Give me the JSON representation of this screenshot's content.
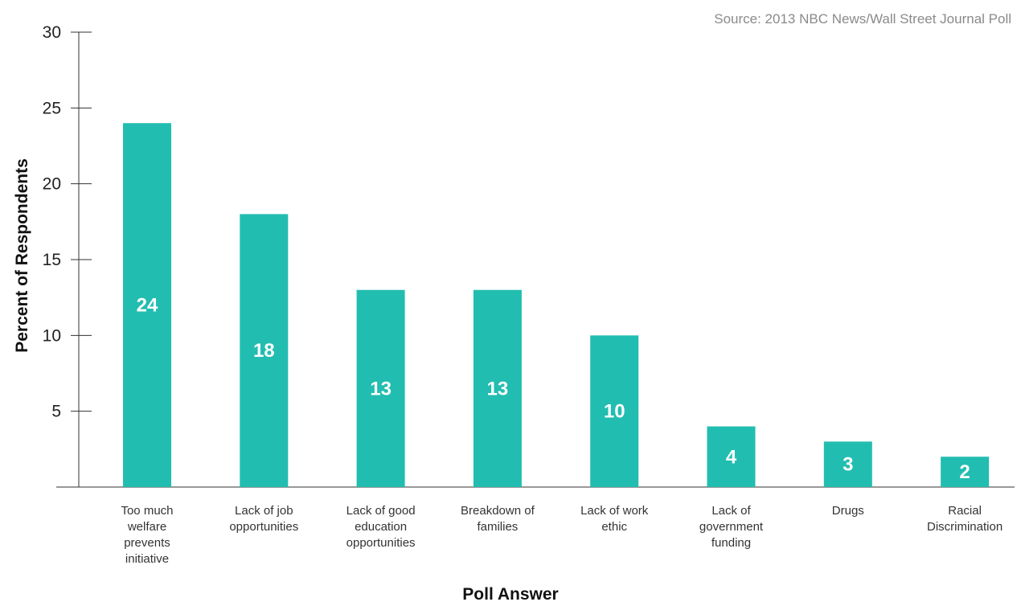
{
  "source_note": "Source: 2013 NBC News/Wall Street Journal Poll",
  "chart_data": {
    "type": "bar",
    "xlabel": "Poll Answer",
    "ylabel": "Percent of Respondents",
    "ylim": [
      0,
      30
    ],
    "yticks": [
      5,
      10,
      15,
      20,
      25,
      30
    ],
    "grid": false,
    "bar_color": "#22bdb1",
    "data_label_color": "#ffffff",
    "categories": [
      "Too much welfare prevents initiative",
      "Lack of job opportunities",
      "Lack of good education opportunities",
      "Breakdown of families",
      "Lack of work ethic",
      "Lack of government funding",
      "Drugs",
      "Racial Discrimination"
    ],
    "category_label_lines": [
      [
        "Too much",
        "welfare",
        "prevents",
        "initiative"
      ],
      [
        "Lack of job",
        "opportunities"
      ],
      [
        "Lack of good",
        "education",
        "opportunities"
      ],
      [
        "Breakdown of",
        "families"
      ],
      [
        "Lack of work",
        "ethic"
      ],
      [
        "Lack of",
        "government",
        "funding"
      ],
      [
        "Drugs"
      ],
      [
        "Racial",
        "Discrimination"
      ]
    ],
    "values": [
      24,
      18,
      13,
      13,
      10,
      4,
      3,
      2
    ]
  }
}
